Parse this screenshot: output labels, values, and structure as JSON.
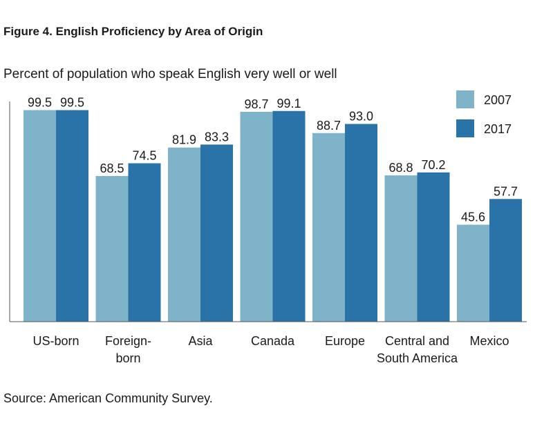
{
  "chart_data": {
    "type": "bar",
    "title": "Figure 4. English Proficiency by Area of Origin",
    "subtitle": "Percent of population who speak English very well or well",
    "source": "Source: American Community Survey.",
    "categories": [
      [
        "US-born"
      ],
      [
        "Foreign-",
        "born"
      ],
      [
        "Asia"
      ],
      [
        "Canada"
      ],
      [
        "Europe"
      ],
      [
        "Central and",
        "South America"
      ],
      [
        "Mexico"
      ]
    ],
    "series": [
      {
        "name": "2007",
        "color": "#7fb3c9",
        "values": [
          99.5,
          68.5,
          81.9,
          98.7,
          88.7,
          68.8,
          45.6
        ]
      },
      {
        "name": "2017",
        "color": "#2a73a8",
        "values": [
          99.5,
          74.5,
          83.3,
          99.1,
          93.0,
          70.2,
          57.7
        ]
      }
    ],
    "value_labels": [
      [
        "99.5",
        "68.5",
        "81.9",
        "98.7",
        "88.7",
        "68.8",
        "45.6"
      ],
      [
        "99.5",
        "74.5",
        "83.3",
        "99.1",
        "93.0",
        "70.2",
        "57.7"
      ]
    ],
    "ylim": [
      0,
      100
    ],
    "grid": false,
    "legend_position": "top-right"
  }
}
